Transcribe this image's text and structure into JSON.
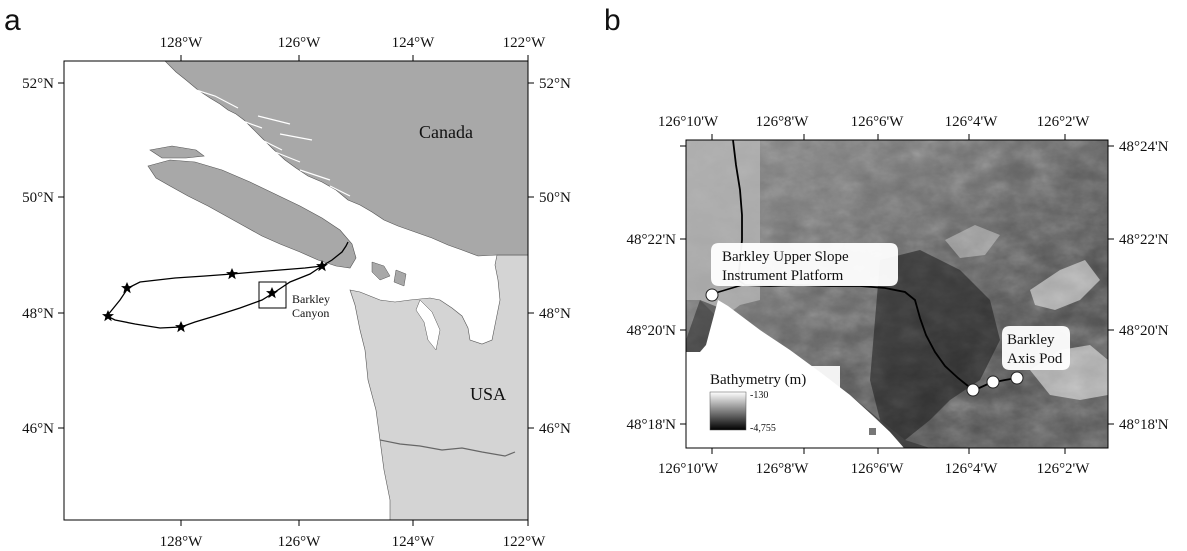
{
  "panel_a": {
    "letter": "a",
    "lon_ticks": [
      "128°W",
      "126°W",
      "124°W",
      "122°W"
    ],
    "lat_ticks": [
      "52°N",
      "50°N",
      "48°N",
      "46°N"
    ],
    "labels": {
      "canada": "Canada",
      "usa": "USA",
      "canyon_line1": "Barkley",
      "canyon_line2": "Canyon"
    },
    "colors": {
      "canada_land": "#a8a8a8",
      "usa_land": "#d4d4d4",
      "ocean": "#ffffff",
      "track": "#000000"
    }
  },
  "panel_b": {
    "letter": "b",
    "lon_ticks": [
      "126°10'W",
      "126°8'W",
      "126°6'W",
      "126°4'W",
      "126°2'W"
    ],
    "lat_ticks": [
      "48°24'N",
      "48°22'N",
      "48°20'N",
      "48°18'N"
    ],
    "callouts": {
      "upper_slope_line1": "Barkley Upper Slope",
      "upper_slope_line2": "Instrument Platform",
      "axis_pod_line1": "Barkley",
      "axis_pod_line2": "Axis Pod"
    },
    "legend": {
      "title": "Bathymetry (m)",
      "max": "-130",
      "min": "-4,755"
    },
    "colors": {
      "shallow": "#ffffff",
      "deep": "#000000",
      "relief": "#4d4d4d"
    }
  }
}
